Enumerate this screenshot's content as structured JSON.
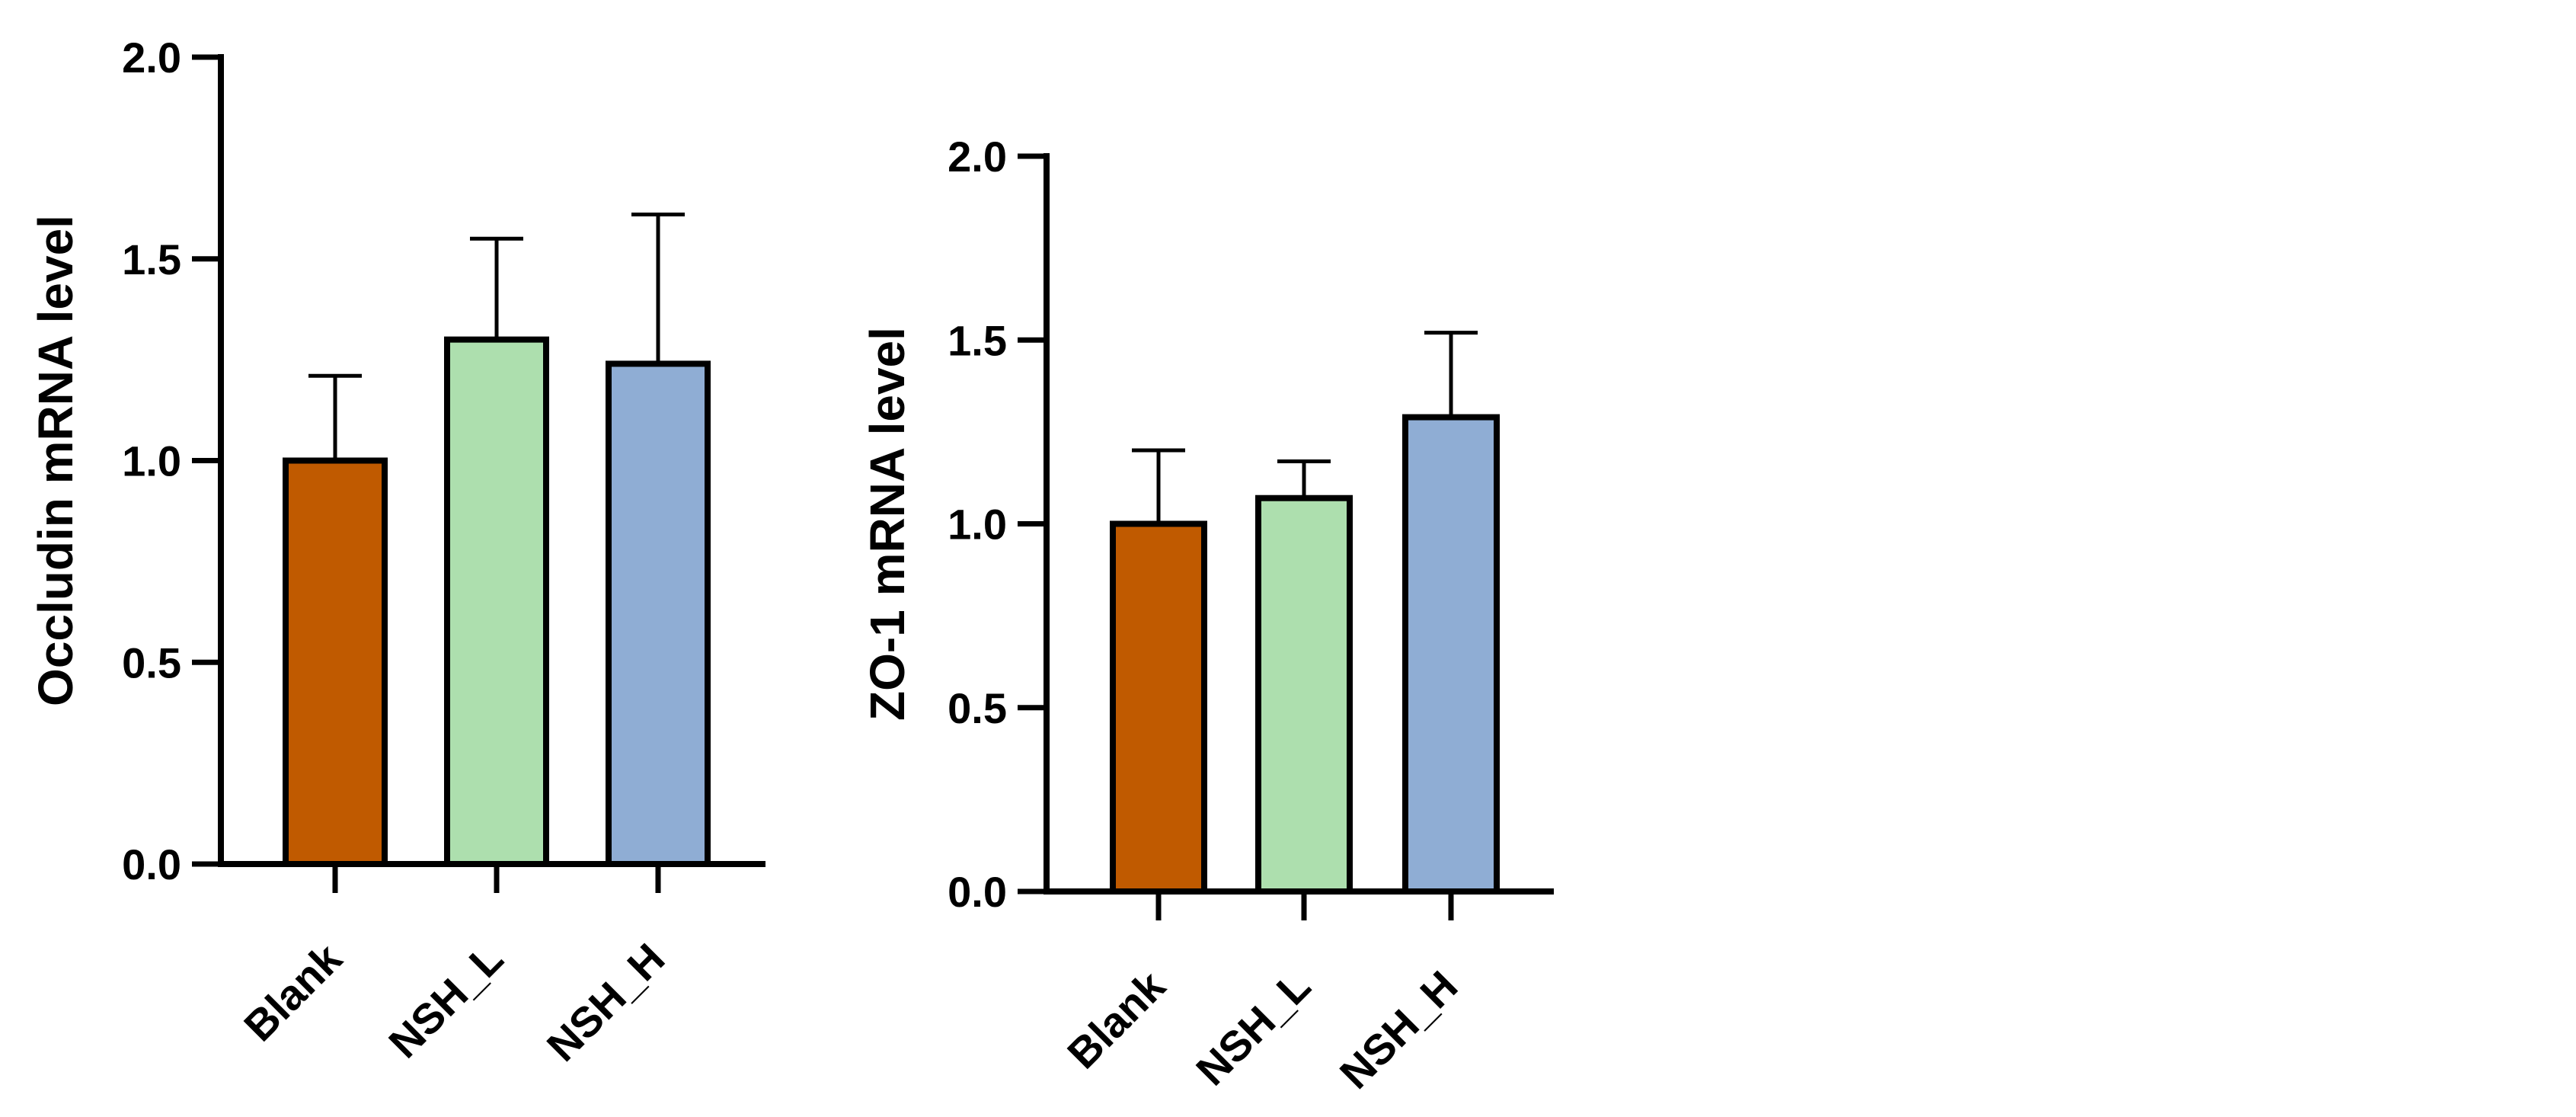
{
  "chart_data": [
    {
      "type": "bar",
      "categories": [
        "Blank",
        "NSH_L",
        "NSH_H"
      ],
      "values": [
        1.0,
        1.3,
        1.24
      ],
      "errors": [
        0.21,
        0.25,
        0.37
      ],
      "colors": [
        "#C05A00",
        "#ADDFAE",
        "#8FADD4"
      ],
      "title": "",
      "xlabel": "",
      "ylabel": "Occludin mRNA level",
      "ylim": [
        0,
        2.0
      ],
      "yticks": [
        "0.0",
        "0.5",
        "1.0",
        "1.5",
        "2.0"
      ],
      "grid": false
    },
    {
      "type": "bar",
      "categories": [
        "Blank",
        "NSH_L",
        "NSH_H"
      ],
      "values": [
        1.0,
        1.07,
        1.29
      ],
      "errors": [
        0.2,
        0.1,
        0.23
      ],
      "colors": [
        "#C05A00",
        "#ADDFAE",
        "#8FADD4"
      ],
      "title": "",
      "xlabel": "",
      "ylabel": "ZO-1 mRNA level",
      "ylim": [
        0,
        2.0
      ],
      "yticks": [
        "0.0",
        "0.5",
        "1.0",
        "1.5",
        "2.0"
      ],
      "grid": false
    }
  ]
}
